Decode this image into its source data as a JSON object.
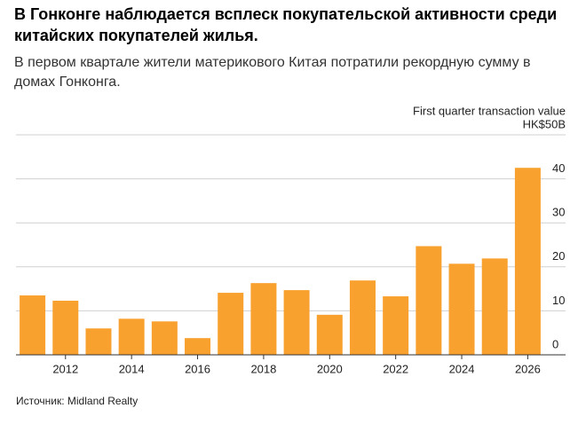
{
  "chart_data": {
    "type": "bar",
    "title": "В Гонконге наблюдается всплеск покупательской активности среди китайских покупателей жилья.",
    "subtitle": "В первом квартале жители материкового Китая потратили рекордную сумму в домах Гонконга.",
    "y_label": "First quarter transaction value",
    "source": "Источник: Midland Realty",
    "categories": [
      null,
      "2012",
      null,
      "2014",
      null,
      "2016",
      null,
      "2018",
      null,
      "2020",
      null,
      "2022",
      null,
      "2024",
      null,
      "2026"
    ],
    "values": [
      13.5,
      12.3,
      6.0,
      8.2,
      7.6,
      3.8,
      14.1,
      16.3,
      14.7,
      9.1,
      16.9,
      13.3,
      24.7,
      20.7,
      21.9,
      42.5
    ],
    "color": "#f9a12f",
    "ylim": [
      0,
      50
    ],
    "yticks": [
      0,
      10,
      20,
      30,
      40,
      {
        "value": 50,
        "label": "HK$50B"
      }
    ],
    "grid": true
  }
}
